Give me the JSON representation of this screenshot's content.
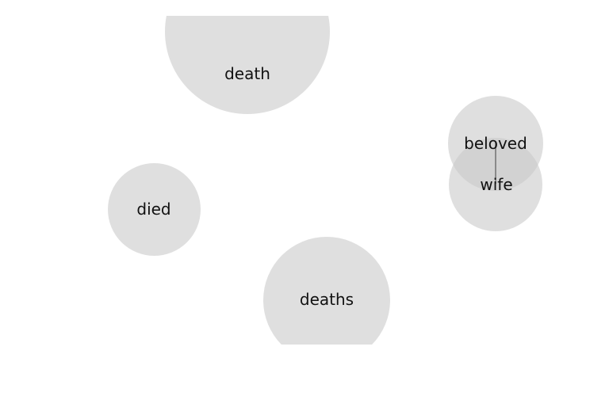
{
  "nodes": [
    {
      "id": "death",
      "label": "death"
    },
    {
      "id": "died",
      "label": "died"
    },
    {
      "id": "deaths",
      "label": "deaths"
    },
    {
      "id": "beloved",
      "label": "beloved"
    },
    {
      "id": "wife",
      "label": "wife"
    }
  ],
  "edges": [
    {
      "from": "beloved",
      "to": "wife"
    }
  ],
  "colors": {
    "bubble": "#c8c8c8",
    "edge": "#8a8a8a",
    "text": "#111111",
    "background": "#ffffff"
  }
}
